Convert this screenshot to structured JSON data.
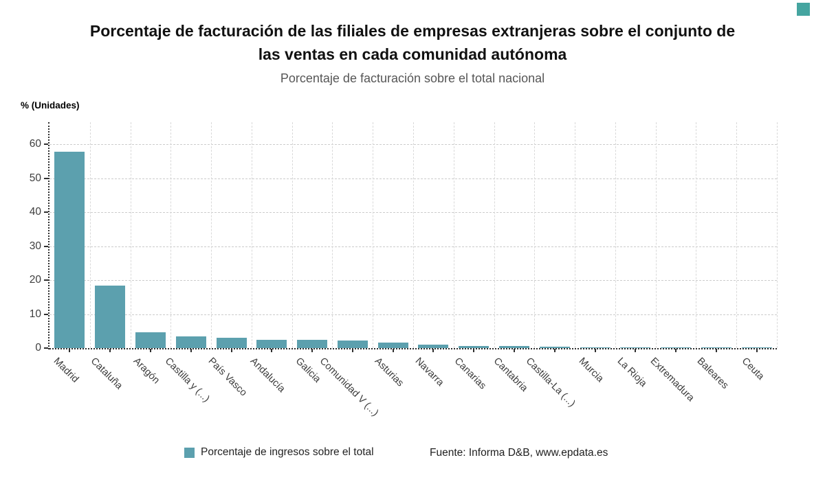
{
  "brand": {
    "corner_square_color": "#45A5A0"
  },
  "header": {
    "title_line1": "Porcentaje de facturación de las filiales de empresas extranjeras sobre el conjunto de",
    "title_line2": "las ventas en cada comunidad autónoma",
    "subtitle": "Porcentaje de facturación sobre el total nacional"
  },
  "chart_data": {
    "type": "bar",
    "title": "Porcentaje de facturación de las filiales de empresas extranjeras sobre el conjunto de las ventas en cada comunidad autónoma",
    "subtitle": "Porcentaje de facturación sobre el total nacional",
    "ylabel": "% (Unidades)",
    "xlabel": "",
    "categories": [
      "Madrid",
      "Cataluña",
      "Aragón",
      "Castilla y (...)",
      "País Vasco",
      "Andalucía",
      "Galicia",
      "Comunidad V (...)",
      "Asturias",
      "Navarra",
      "Canarias",
      "Cantabria",
      "Castilla-La (...)",
      "Murcia",
      "La Rioja",
      "Extremadura",
      "Baleares",
      "Ceuta"
    ],
    "values": [
      57.8,
      18.4,
      4.6,
      3.5,
      3.0,
      2.5,
      2.4,
      2.2,
      1.6,
      1.1,
      0.7,
      0.55,
      0.4,
      0.2,
      0.15,
      0.1,
      0.08,
      0.03
    ],
    "series_name": "Porcentaje de ingresos sobre el total",
    "yticks": [
      0,
      10,
      20,
      30,
      40,
      50,
      60
    ],
    "ylim": [
      0,
      66.5
    ],
    "grid": true,
    "bar_color": "#5CA0AE",
    "legend_position": "bottom"
  },
  "legend": {
    "label": "Porcentaje de ingresos sobre el total",
    "swatch_color": "#5CA0AE"
  },
  "footer": {
    "source": "Fuente: Informa D&B, www.epdata.es"
  }
}
